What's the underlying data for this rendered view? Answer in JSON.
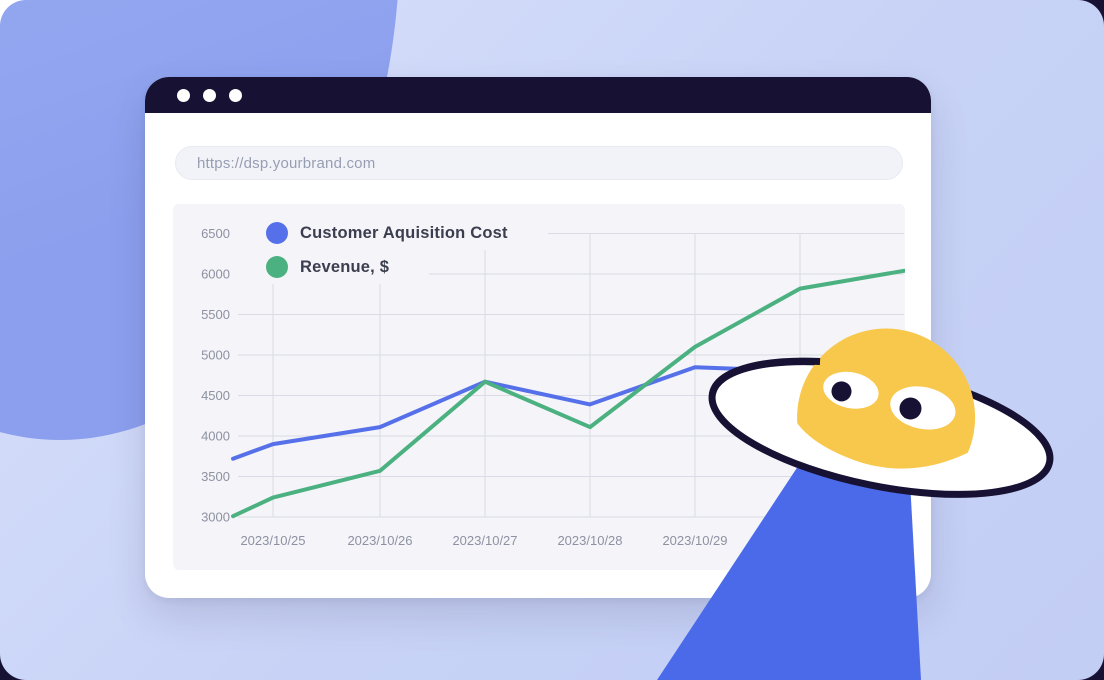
{
  "browser": {
    "url": "https://dsp.yourbrand.com",
    "window_controls": [
      "dot",
      "dot",
      "dot"
    ]
  },
  "legend": [
    {
      "label": "Customer Aquisition Cost",
      "color": "#5570e9"
    },
    {
      "label": "Revenue, $",
      "color": "#4bb180"
    }
  ],
  "colors": {
    "navy": "#171134",
    "lavender": "#c7d2f6",
    "periwinkle": "#93a7f0",
    "royal_blue_beam": "#4b6ae9",
    "alien_yellow": "#f8c84c",
    "panel_bg": "#f4f4f9",
    "gridline": "#dadbe4",
    "axis_label": "#8d91a1"
  },
  "chart_data": {
    "type": "line",
    "title": "",
    "xlabel": "",
    "ylabel": "",
    "categories": [
      "2023/10/25",
      "2023/10/26",
      "2023/10/27",
      "2023/10/28",
      "2023/10/29"
    ],
    "y_ticks": [
      6500,
      6000,
      5500,
      5000,
      4500,
      4000,
      3500,
      3000
    ],
    "ylim": [
      3000,
      6500
    ],
    "grid": true,
    "legend_position": "top-left",
    "series": [
      {
        "name": "Customer Aquisition Cost",
        "color": "#5570e9",
        "edge_start": 3720,
        "values": [
          3900,
          4110,
          4670,
          4390,
          4850
        ],
        "trailing_unlabeled": [
          4800,
          4850
        ]
      },
      {
        "name": "Revenue, $",
        "color": "#4bb180",
        "edge_start": 3010,
        "values": [
          3240,
          3570,
          4670,
          4110,
          5100
        ],
        "trailing_unlabeled": [
          5820,
          6040
        ]
      }
    ]
  },
  "illustration": {
    "ufo": "white saucer with navy outline, yellow alien dome, two eyes, blue tractor beam"
  }
}
